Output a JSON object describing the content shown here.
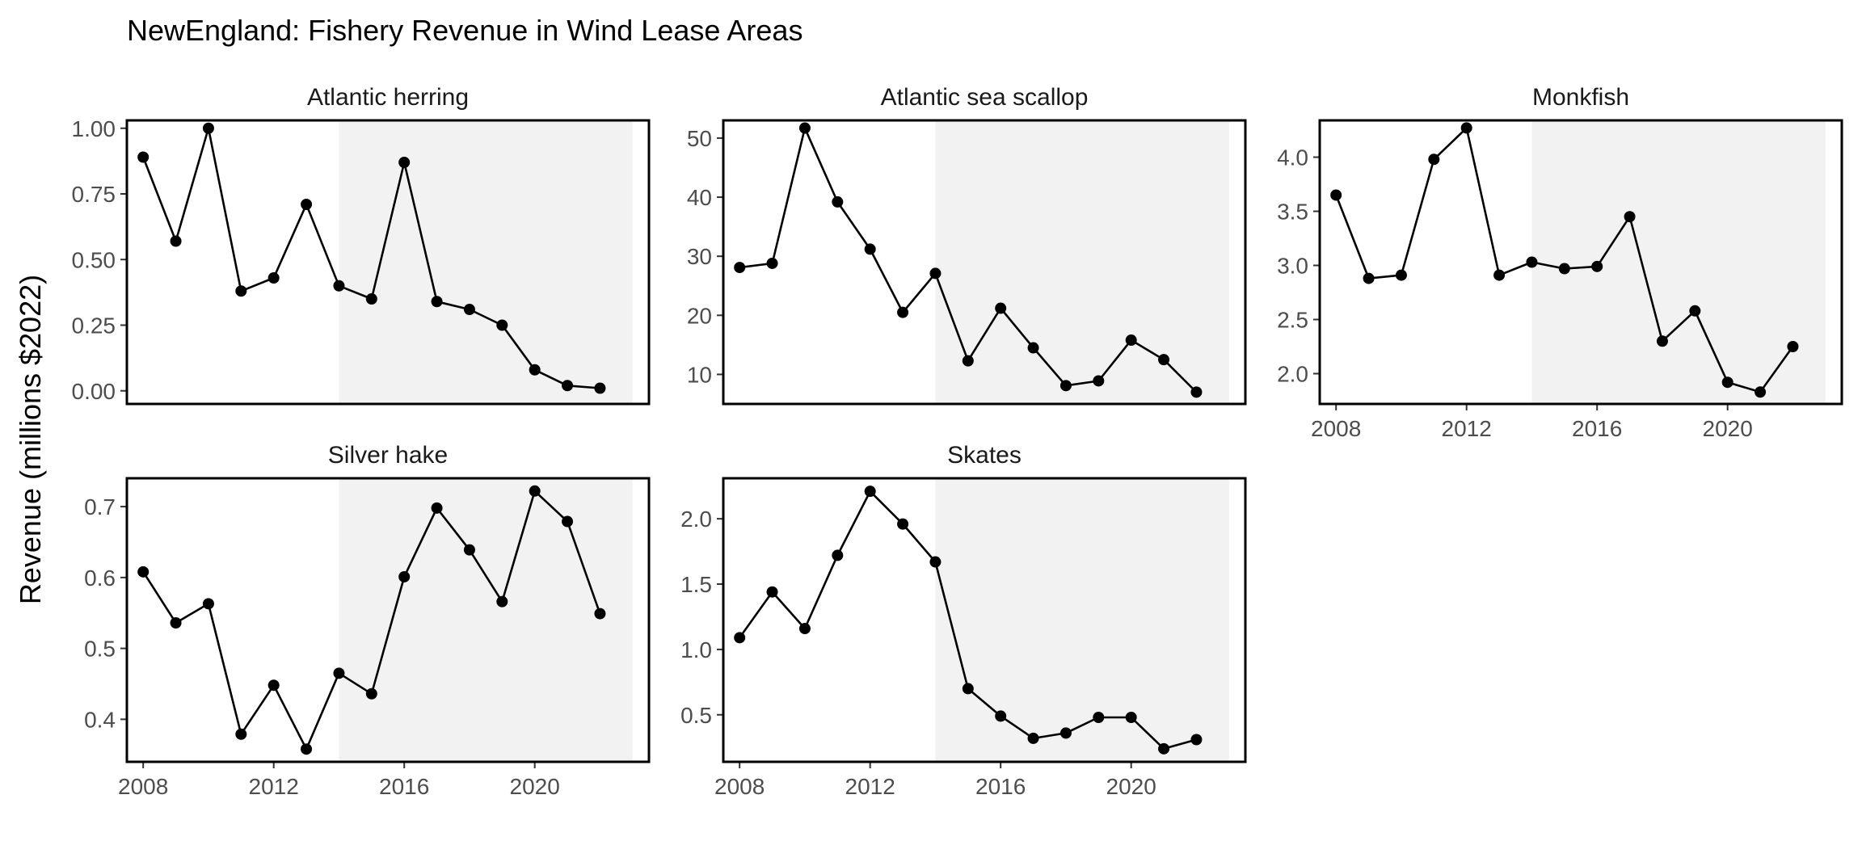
{
  "chart_data": {
    "type": "line",
    "title": "NewEngland: Fishery Revenue in Wind Lease Areas",
    "ylabel": "Revenue (millions $2022)",
    "xlabel": "",
    "x_ticks": [
      2008,
      2012,
      2016,
      2020
    ],
    "xlim": [
      2007.5,
      2023.5
    ],
    "shaded_period": [
      2014,
      2023
    ],
    "grid": false,
    "colors": {
      "line": "#000000",
      "shade": "#f2f2f2",
      "panel_border": "#000000"
    },
    "panels": [
      {
        "name": "Atlantic herring",
        "ylim": [
          -0.05,
          1.03
        ],
        "y_ticks": [
          "0.00",
          "0.25",
          "0.50",
          "0.75",
          "1.00"
        ],
        "x": [
          2008,
          2009,
          2010,
          2011,
          2012,
          2013,
          2014,
          2015,
          2016,
          2017,
          2018,
          2019,
          2020,
          2021,
          2022
        ],
        "values": [
          0.89,
          0.57,
          1.0,
          0.38,
          0.43,
          0.71,
          0.4,
          0.35,
          0.87,
          0.34,
          0.31,
          0.25,
          0.08,
          0.02,
          0.01
        ]
      },
      {
        "name": "Atlantic sea scallop",
        "ylim": [
          5,
          53
        ],
        "y_ticks": [
          "10",
          "20",
          "30",
          "40",
          "50"
        ],
        "x": [
          2008,
          2009,
          2010,
          2011,
          2012,
          2013,
          2014,
          2015,
          2016,
          2017,
          2018,
          2019,
          2020,
          2021,
          2022
        ],
        "values": [
          28.1,
          28.8,
          51.7,
          39.2,
          31.2,
          20.5,
          27.1,
          12.3,
          21.2,
          14.5,
          8.1,
          8.9,
          15.8,
          12.5,
          7.0
        ]
      },
      {
        "name": "Monkfish",
        "ylim": [
          1.72,
          4.34
        ],
        "y_ticks": [
          "2.0",
          "2.5",
          "3.0",
          "3.5",
          "4.0"
        ],
        "x": [
          2008,
          2009,
          2010,
          2011,
          2012,
          2013,
          2014,
          2015,
          2016,
          2017,
          2018,
          2019,
          2020,
          2021,
          2022
        ],
        "values": [
          3.65,
          2.88,
          2.91,
          3.98,
          4.27,
          2.91,
          3.03,
          2.97,
          2.99,
          3.45,
          2.3,
          2.58,
          1.92,
          1.83,
          2.25
        ]
      },
      {
        "name": "Silver hake",
        "ylim": [
          0.34,
          0.74
        ],
        "y_ticks": [
          "0.4",
          "0.5",
          "0.6",
          "0.7"
        ],
        "x": [
          2008,
          2009,
          2010,
          2011,
          2012,
          2013,
          2014,
          2015,
          2016,
          2017,
          2018,
          2019,
          2020,
          2021,
          2022
        ],
        "values": [
          0.608,
          0.536,
          0.563,
          0.379,
          0.448,
          0.358,
          0.465,
          0.436,
          0.601,
          0.698,
          0.639,
          0.566,
          0.722,
          0.679,
          0.549
        ]
      },
      {
        "name": "Skates",
        "ylim": [
          0.14,
          2.31
        ],
        "y_ticks": [
          "0.5",
          "1.0",
          "1.5",
          "2.0"
        ],
        "x": [
          2008,
          2009,
          2010,
          2011,
          2012,
          2013,
          2014,
          2015,
          2016,
          2017,
          2018,
          2019,
          2020,
          2021,
          2022
        ],
        "values": [
          1.09,
          1.44,
          1.16,
          1.72,
          2.21,
          1.96,
          1.67,
          0.7,
          0.49,
          0.32,
          0.36,
          0.48,
          0.48,
          0.24,
          0.31
        ]
      }
    ]
  }
}
